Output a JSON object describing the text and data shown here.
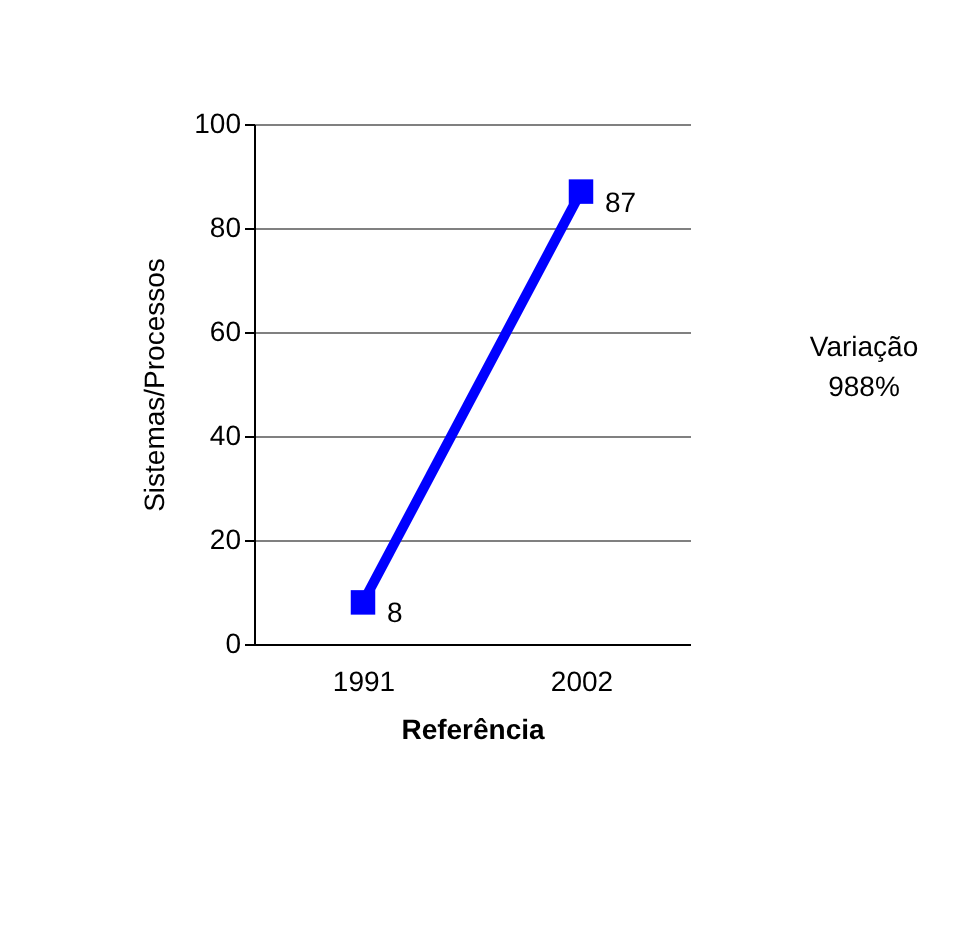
{
  "chart_data": {
    "type": "line",
    "xlabel": "Referência",
    "ylabel": "Sistemas/Processos",
    "categories": [
      "1991",
      "2002"
    ],
    "series": [
      {
        "color": "#0000ff",
        "values": [
          8,
          87
        ]
      }
    ],
    "ylim": [
      0,
      100
    ],
    "yticks": [
      0,
      20,
      40,
      60,
      80,
      100
    ],
    "grid": "y",
    "marker": "square",
    "line_style": "solid",
    "data_labels": true,
    "annotations": [
      "Variação\n988%"
    ]
  }
}
